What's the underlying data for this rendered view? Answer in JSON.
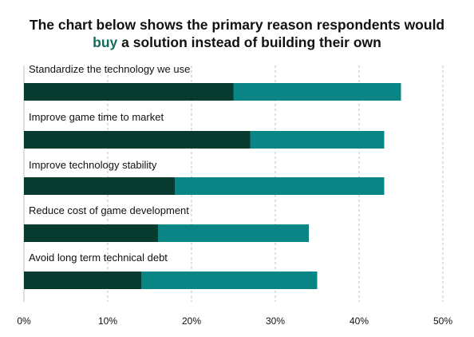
{
  "title": {
    "line1": "The chart below shows the primary reason respondents would",
    "highlight": "buy",
    "line2_rest": " a solution instead of building their own"
  },
  "chart_data": {
    "type": "bar",
    "orientation": "horizontal",
    "stacked": true,
    "categories": [
      "Standardize the technology we use",
      "Improve game time to market",
      "Improve technology stability",
      "Reduce cost of game development",
      "Avoid long term technical debt"
    ],
    "series": [
      {
        "values": [
          25,
          27,
          18,
          16,
          14
        ],
        "color": "#073b30"
      },
      {
        "values": [
          20,
          16,
          25,
          18,
          21
        ],
        "color": "#0a8585"
      }
    ],
    "xlim": [
      0,
      50
    ],
    "xticks": [
      0,
      10,
      20,
      30,
      40,
      50
    ],
    "tick_suffix": "%",
    "grid": "vertical-dashed",
    "legend": "none",
    "title": "The chart below shows the primary reason respondents would buy a solution instead of building their own"
  }
}
